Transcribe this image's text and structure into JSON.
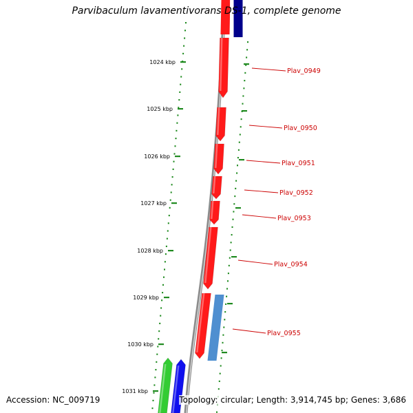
{
  "title": "Parvibaculum lavamentivorans DS-1, complete genome",
  "accession_text": "Accession: NC_009719",
  "topology_text": "Topology: circular; Length: 3,914,745 bp; Genes: 3,686",
  "colors": {
    "backbone": "#8c8c8c",
    "tick": "#1f8a1f",
    "label": "#cc0000",
    "gene_forward": "#ff1a1a",
    "gene_other_strand": "#00008b",
    "gene_steel": "#4f8fd0",
    "gene_green": "#33cc33",
    "gene_blue": "#1010ee"
  },
  "kbp_ticks": [
    {
      "label": "1024 kbp"
    },
    {
      "label": "1025 kbp"
    },
    {
      "label": "1026 kbp"
    },
    {
      "label": "1027 kbp"
    },
    {
      "label": "1028 kbp"
    },
    {
      "label": "1029 kbp"
    },
    {
      "label": "1030 kbp"
    },
    {
      "label": "1031 kbp"
    }
  ],
  "gene_labels": [
    {
      "text": "Plav_0949"
    },
    {
      "text": "Plav_0950"
    },
    {
      "text": "Plav_0951"
    },
    {
      "text": "Plav_0952"
    },
    {
      "text": "Plav_0953"
    },
    {
      "text": "Plav_0954"
    },
    {
      "text": "Plav_0955"
    }
  ]
}
